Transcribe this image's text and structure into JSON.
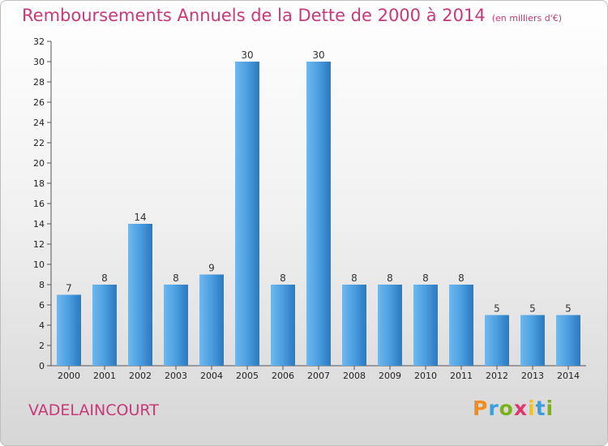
{
  "header": {
    "title": "Remboursements Annuels de la Dette de 2000 à 2014",
    "unit": "(en milliers d'€)"
  },
  "footer": {
    "commune": "VADELAINCOURT",
    "logo": [
      "P",
      "r",
      "o",
      "x",
      "i",
      "t",
      "i"
    ],
    "logo_colors": [
      "#f28c1e",
      "#3a9fdc",
      "#7ab317",
      "#e2356b",
      "#f2c418",
      "#3a9fdc",
      "#7ab317"
    ]
  },
  "colors": {
    "bar": "#4b9ee0",
    "bar_light": "#6db8ee",
    "bar_dark": "#2b78bf",
    "title": "#c8387a"
  },
  "chart_data": {
    "type": "bar",
    "categories": [
      "2000",
      "2001",
      "2002",
      "2003",
      "2004",
      "2005",
      "2006",
      "2007",
      "2008",
      "2009",
      "2010",
      "2011",
      "2012",
      "2013",
      "2014"
    ],
    "values": [
      7,
      8,
      14,
      8,
      9,
      30,
      8,
      30,
      8,
      8,
      8,
      8,
      5,
      5,
      5
    ],
    "ylim": [
      0,
      32
    ],
    "yticks": [
      0,
      2,
      4,
      6,
      8,
      10,
      12,
      14,
      16,
      18,
      20,
      22,
      24,
      26,
      28,
      30,
      32
    ],
    "grid": false,
    "xlabel": "",
    "ylabel": ""
  }
}
